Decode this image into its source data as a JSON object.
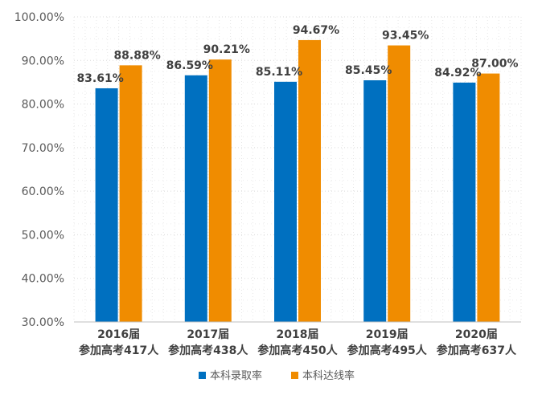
{
  "chart_data": {
    "type": "bar",
    "categories": [
      [
        "2016届",
        "参加高考417人"
      ],
      [
        "2017届",
        "参加高考438人"
      ],
      [
        "2018届",
        "参加高考450人"
      ],
      [
        "2019届",
        "参加高考495人"
      ],
      [
        "2020届",
        "参加高考637人"
      ]
    ],
    "series": [
      {
        "name": "本科录取率",
        "color": "#0070C0",
        "values": [
          83.61,
          86.59,
          85.11,
          85.45,
          84.92
        ],
        "labels": [
          "83.61%",
          "86.59%",
          "85.11%",
          "85.45%",
          "84.92%"
        ]
      },
      {
        "name": "本科达线率",
        "color": "#F08C00",
        "values": [
          88.88,
          90.21,
          94.67,
          93.45,
          87.0
        ],
        "labels": [
          "88.88%",
          "90.21%",
          "94.67%",
          "93.45%",
          "87.00%"
        ]
      }
    ],
    "y_ticks": [
      "30.00%",
      "40.00%",
      "50.00%",
      "60.00%",
      "70.00%",
      "80.00%",
      "90.00%",
      "100.00%"
    ],
    "ylim": [
      30,
      100
    ],
    "title": "",
    "xlabel": "",
    "ylabel": "",
    "grid": "dotted",
    "legend_position": "bottom"
  }
}
